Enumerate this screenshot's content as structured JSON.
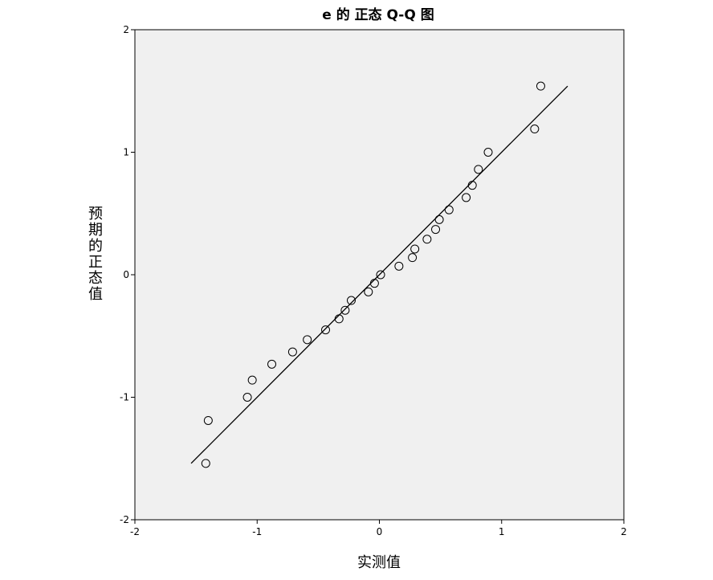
{
  "chart_data": {
    "type": "scatter",
    "title": "e 的 正态 Q-Q 图",
    "xlabel": "实测值",
    "ylabel": "预期的正态值",
    "xlim": [
      -2,
      2
    ],
    "ylim": [
      -2,
      2
    ],
    "xticks": [
      "-2",
      "-1",
      "0",
      "1",
      "2"
    ],
    "yticks": [
      "-2",
      "-1",
      "0",
      "1",
      "2"
    ],
    "grid": false,
    "background_color": "#f0f0f0",
    "marker": "hollow-circle",
    "points": [
      {
        "x": -1.42,
        "y": -1.54
      },
      {
        "x": -1.4,
        "y": -1.19
      },
      {
        "x": -1.08,
        "y": -1.0
      },
      {
        "x": -1.04,
        "y": -0.86
      },
      {
        "x": -0.88,
        "y": -0.73
      },
      {
        "x": -0.71,
        "y": -0.63
      },
      {
        "x": -0.59,
        "y": -0.53
      },
      {
        "x": -0.44,
        "y": -0.45
      },
      {
        "x": -0.33,
        "y": -0.36
      },
      {
        "x": -0.28,
        "y": -0.29
      },
      {
        "x": -0.23,
        "y": -0.21
      },
      {
        "x": -0.09,
        "y": -0.14
      },
      {
        "x": -0.04,
        "y": -0.07
      },
      {
        "x": 0.01,
        "y": 0.0
      },
      {
        "x": 0.16,
        "y": 0.07
      },
      {
        "x": 0.27,
        "y": 0.14
      },
      {
        "x": 0.29,
        "y": 0.21
      },
      {
        "x": 0.39,
        "y": 0.29
      },
      {
        "x": 0.46,
        "y": 0.37
      },
      {
        "x": 0.49,
        "y": 0.45
      },
      {
        "x": 0.57,
        "y": 0.53
      },
      {
        "x": 0.71,
        "y": 0.63
      },
      {
        "x": 0.76,
        "y": 0.73
      },
      {
        "x": 0.81,
        "y": 0.86
      },
      {
        "x": 0.89,
        "y": 1.0
      },
      {
        "x": 1.27,
        "y": 1.19
      },
      {
        "x": 1.32,
        "y": 1.54
      }
    ],
    "reference_line": {
      "x": [
        -1.54,
        1.54
      ],
      "y": [
        -1.54,
        1.54
      ]
    }
  }
}
